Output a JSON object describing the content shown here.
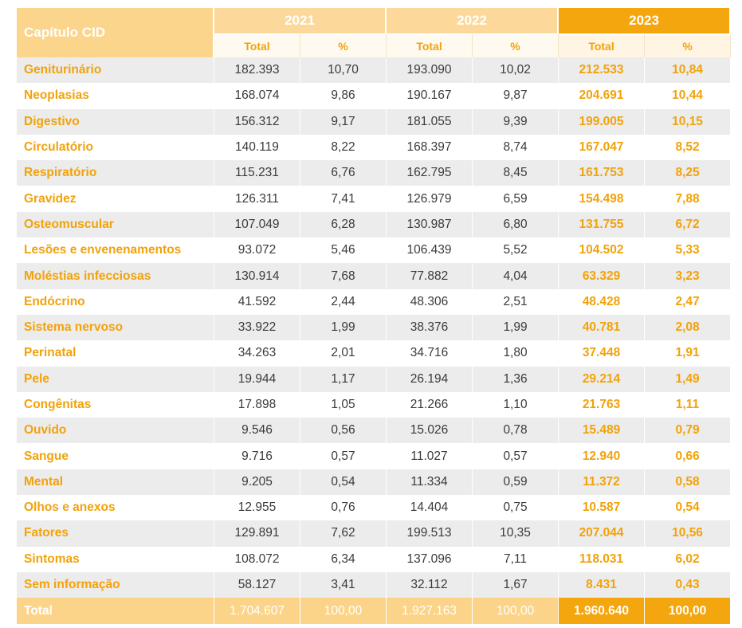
{
  "header": {
    "capitulo": "Capítulo CID",
    "years": [
      "2021",
      "2022",
      "2023"
    ],
    "sub_total": "Total",
    "sub_pct": "%"
  },
  "rows": [
    {
      "label": "Geniturinário",
      "t21": "182.393",
      "p21": "10,70",
      "t22": "193.090",
      "p22": "10,02",
      "t23": "212.533",
      "p23": "10,84"
    },
    {
      "label": "Neoplasias",
      "t21": "168.074",
      "p21": "9,86",
      "t22": "190.167",
      "p22": "9,87",
      "t23": "204.691",
      "p23": "10,44"
    },
    {
      "label": "Digestivo",
      "t21": "156.312",
      "p21": "9,17",
      "t22": "181.055",
      "p22": "9,39",
      "t23": "199.005",
      "p23": "10,15"
    },
    {
      "label": "Circulatório",
      "t21": "140.119",
      "p21": "8,22",
      "t22": "168.397",
      "p22": "8,74",
      "t23": "167.047",
      "p23": "8,52"
    },
    {
      "label": "Respiratório",
      "t21": "115.231",
      "p21": "6,76",
      "t22": "162.795",
      "p22": "8,45",
      "t23": "161.753",
      "p23": "8,25"
    },
    {
      "label": "Gravidez",
      "t21": "126.311",
      "p21": "7,41",
      "t22": "126.979",
      "p22": "6,59",
      "t23": "154.498",
      "p23": "7,88"
    },
    {
      "label": "Osteomuscular",
      "t21": "107.049",
      "p21": "6,28",
      "t22": "130.987",
      "p22": "6,80",
      "t23": "131.755",
      "p23": "6,72"
    },
    {
      "label": "Lesões e envenenamentos",
      "t21": "93.072",
      "p21": "5,46",
      "t22": "106.439",
      "p22": "5,52",
      "t23": "104.502",
      "p23": "5,33"
    },
    {
      "label": "Moléstias infecciosas",
      "t21": "130.914",
      "p21": "7,68",
      "t22": "77.882",
      "p22": "4,04",
      "t23": "63.329",
      "p23": "3,23"
    },
    {
      "label": "Endócrino",
      "t21": "41.592",
      "p21": "2,44",
      "t22": "48.306",
      "p22": "2,51",
      "t23": "48.428",
      "p23": "2,47"
    },
    {
      "label": "Sistema nervoso",
      "t21": "33.922",
      "p21": "1,99",
      "t22": "38.376",
      "p22": "1,99",
      "t23": "40.781",
      "p23": "2,08"
    },
    {
      "label": "Perinatal",
      "t21": "34.263",
      "p21": "2,01",
      "t22": "34.716",
      "p22": "1,80",
      "t23": "37.448",
      "p23": "1,91"
    },
    {
      "label": "Pele",
      "t21": "19.944",
      "p21": "1,17",
      "t22": "26.194",
      "p22": "1,36",
      "t23": "29.214",
      "p23": "1,49"
    },
    {
      "label": "Congênitas",
      "t21": "17.898",
      "p21": "1,05",
      "t22": "21.266",
      "p22": "1,10",
      "t23": "21.763",
      "p23": "1,11"
    },
    {
      "label": "Ouvido",
      "t21": "9.546",
      "p21": "0,56",
      "t22": "15.026",
      "p22": "0,78",
      "t23": "15.489",
      "p23": "0,79"
    },
    {
      "label": "Sangue",
      "t21": "9.716",
      "p21": "0,57",
      "t22": "11.027",
      "p22": "0,57",
      "t23": "12.940",
      "p23": "0,66"
    },
    {
      "label": "Mental",
      "t21": "9.205",
      "p21": "0,54",
      "t22": "11.334",
      "p22": "0,59",
      "t23": "11.372",
      "p23": "0,58"
    },
    {
      "label": "Olhos e anexos",
      "t21": "12.955",
      "p21": "0,76",
      "t22": "14.404",
      "p22": "0,75",
      "t23": "10.587",
      "p23": "0,54"
    },
    {
      "label": "Fatores",
      "t21": "129.891",
      "p21": "7,62",
      "t22": "199.513",
      "p22": "10,35",
      "t23": "207.044",
      "p23": "10,56"
    },
    {
      "label": "Sintomas",
      "t21": "108.072",
      "p21": "6,34",
      "t22": "137.096",
      "p22": "7,11",
      "t23": "118.031",
      "p23": "6,02"
    },
    {
      "label": "Sem informação",
      "t21": "58.127",
      "p21": "3,41",
      "t22": "32.112",
      "p22": "1,67",
      "t23": "8.431",
      "p23": "0,43"
    }
  ],
  "total": {
    "label": "Total",
    "t21": "1.704.607",
    "p21": "100,00",
    "t22": "1.927.163",
    "p22": "100,00",
    "t23": "1.960.640",
    "p23": "100,00"
  },
  "colors": {
    "accent": "#f4a60e",
    "header_light": "#fcd89a",
    "text_orange": "#f2a20a",
    "row_stripe": "#ececec"
  }
}
